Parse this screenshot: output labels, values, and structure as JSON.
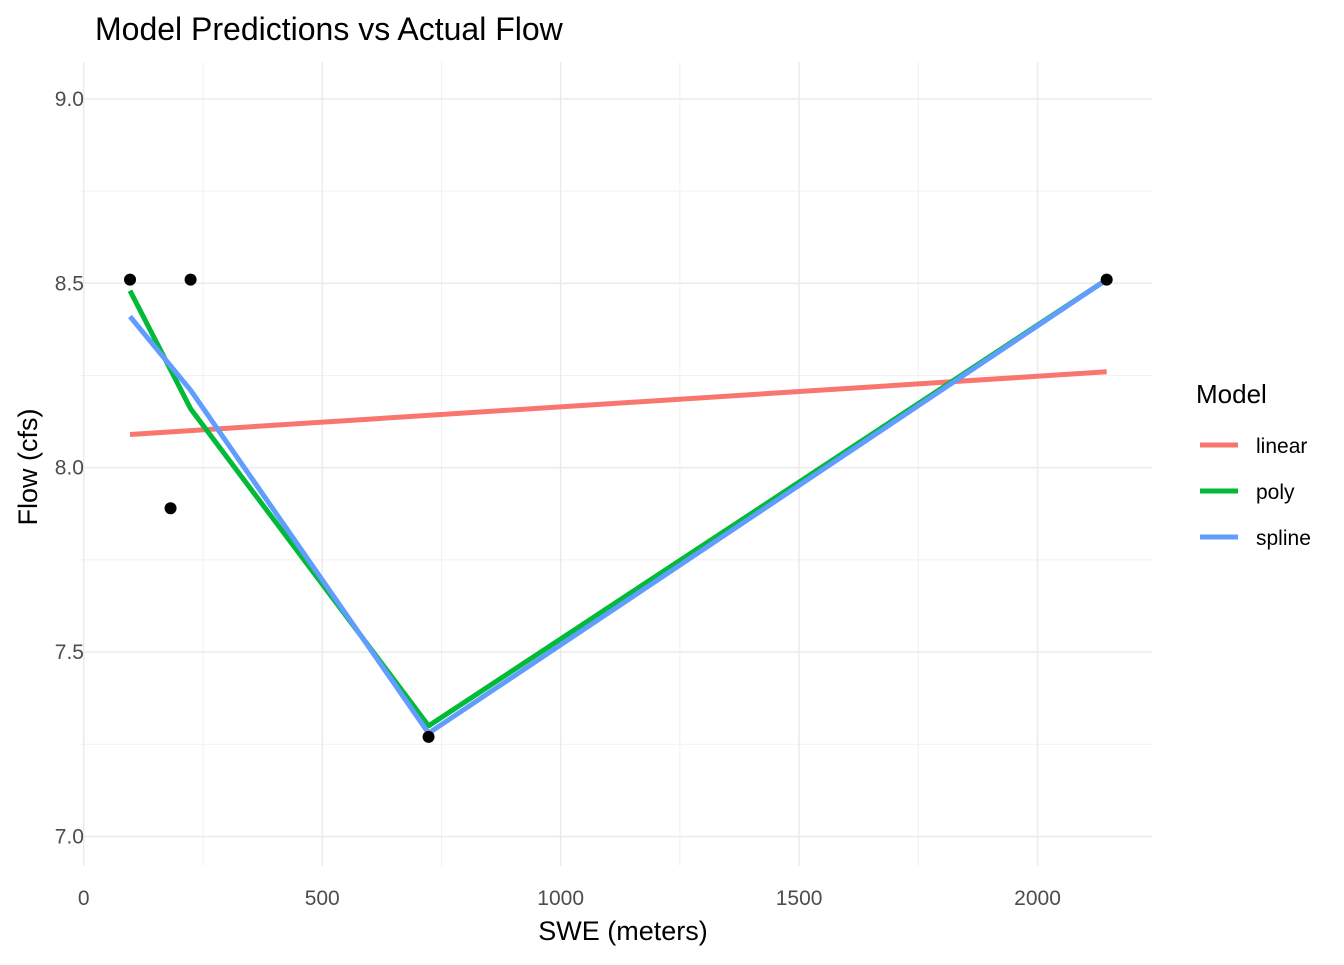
{
  "chart_data": {
    "type": "line",
    "title": "Model Predictions vs Actual Flow",
    "xlabel": "SWE (meters)",
    "ylabel": "Flow (cfs)",
    "xlim": [
      -10,
      2240
    ],
    "ylim": [
      6.92,
      9.1
    ],
    "x_ticks": [
      0,
      500,
      1000,
      1500,
      2000
    ],
    "x_tick_labels": [
      "0",
      "500",
      "1000",
      "1500",
      "2000"
    ],
    "y_ticks": [
      7.0,
      7.5,
      8.0,
      8.5,
      9.0
    ],
    "y_tick_labels": [
      "7.0",
      "7.5",
      "8.0",
      "8.5",
      "9.0"
    ],
    "grid": true,
    "legend_title": "Model",
    "legend_position": "right",
    "points": {
      "color": "#000000",
      "x": [
        97,
        224,
        182,
        723,
        2145
      ],
      "y": [
        8.51,
        8.51,
        7.89,
        7.27,
        8.51
      ]
    },
    "series": [
      {
        "name": "linear",
        "color": "#F8766D",
        "x": [
          97,
          2145
        ],
        "y": [
          8.09,
          8.26
        ]
      },
      {
        "name": "poly",
        "color": "#00BA38",
        "x": [
          97,
          224,
          723,
          2145
        ],
        "y": [
          8.48,
          8.16,
          7.3,
          8.51
        ]
      },
      {
        "name": "spline",
        "color": "#619CFF",
        "x": [
          97,
          224,
          723,
          2145
        ],
        "y": [
          8.41,
          8.21,
          7.28,
          8.51
        ]
      }
    ]
  }
}
